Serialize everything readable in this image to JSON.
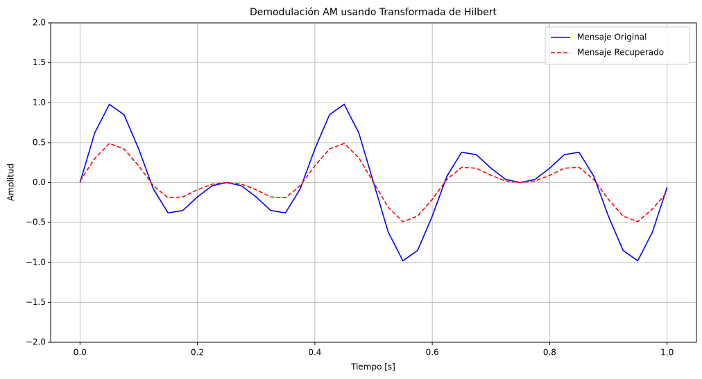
{
  "chart_data": {
    "type": "line",
    "title": "Demodulación AM usando Transformada de Hilbert",
    "xlabel": "Tiempo [s]",
    "ylabel": "Amplitud",
    "x": [
      0,
      0.025,
      0.05,
      0.075,
      0.1,
      0.125,
      0.15,
      0.175,
      0.2,
      0.225,
      0.25,
      0.275,
      0.3,
      0.325,
      0.35,
      0.375,
      0.4,
      0.425,
      0.45,
      0.475,
      0.5,
      0.525,
      0.55,
      0.575,
      0.6,
      0.625,
      0.65,
      0.675,
      0.7,
      0.725,
      0.75,
      0.775,
      0.8,
      0.825,
      0.85,
      0.875,
      0.9,
      0.925,
      0.95,
      0.975,
      1.0
    ],
    "series": [
      {
        "name": "Mensaje Original",
        "color": "#0000ff",
        "linestyle": "solid",
        "values": [
          0,
          0.62,
          0.98,
          0.85,
          0.42,
          -0.08,
          -0.38,
          -0.35,
          -0.18,
          -0.04,
          0,
          -0.04,
          -0.18,
          -0.35,
          -0.38,
          -0.08,
          0.42,
          0.85,
          0.98,
          0.62,
          0,
          -0.62,
          -0.98,
          -0.85,
          -0.42,
          0.08,
          0.38,
          0.35,
          0.18,
          0.04,
          0,
          0.04,
          0.18,
          0.35,
          0.38,
          0.08,
          -0.42,
          -0.85,
          -0.98,
          -0.62,
          -0.06
        ]
      },
      {
        "name": "Mensaje Recuperado",
        "color": "#ff0000",
        "linestyle": "dashed",
        "values": [
          0.02,
          0.3,
          0.49,
          0.42,
          0.21,
          -0.04,
          -0.19,
          -0.18,
          -0.09,
          -0.02,
          0,
          -0.02,
          -0.09,
          -0.18,
          -0.19,
          -0.04,
          0.21,
          0.42,
          0.49,
          0.31,
          0,
          -0.31,
          -0.49,
          -0.42,
          -0.21,
          0.04,
          0.19,
          0.18,
          0.09,
          0.02,
          0,
          0.02,
          0.09,
          0.18,
          0.19,
          0.04,
          -0.21,
          -0.42,
          -0.49,
          -0.33,
          -0.12
        ]
      }
    ],
    "xlim": [
      -0.05,
      1.05
    ],
    "ylim": [
      -2,
      2
    ],
    "xticks": [
      {
        "value": 0,
        "label": "0.0"
      },
      0.2,
      0.4,
      0.6,
      0.8,
      {
        "value": 1,
        "label": "1.0"
      }
    ],
    "yticks": [
      {
        "value": -2,
        "label": "−2.0"
      },
      {
        "value": -1.5,
        "label": "−1.5"
      },
      {
        "value": -1,
        "label": "−1.0"
      },
      {
        "value": -0.5,
        "label": "−0.5"
      },
      {
        "value": 0,
        "label": "0.0"
      },
      0.5,
      {
        "value": 1,
        "label": "1.0"
      },
      1.5,
      {
        "value": 2,
        "label": "2.0"
      }
    ],
    "grid": true,
    "legend": "upper right"
  }
}
